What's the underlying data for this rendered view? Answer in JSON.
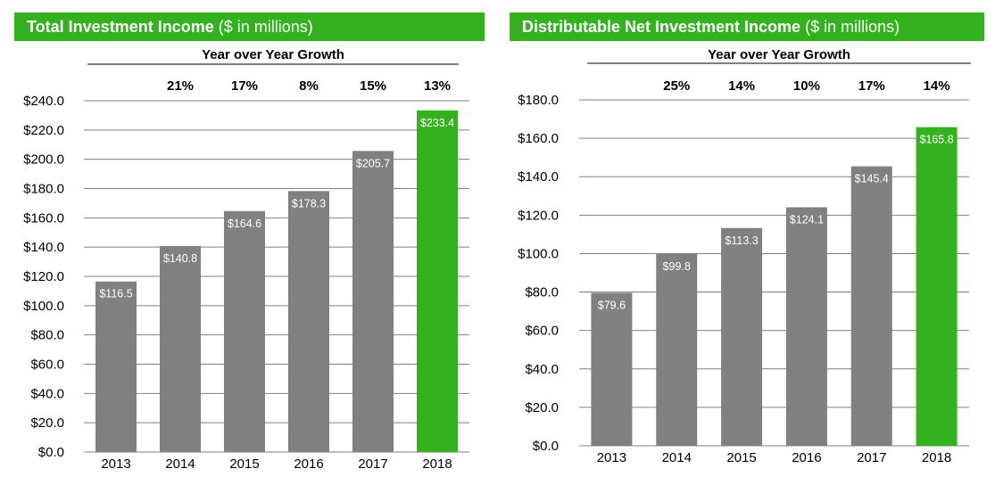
{
  "charts": [
    {
      "title": {
        "bold": "Total Investment Income",
        "normal": "($ in millions)"
      },
      "growth_header": "Year over Year Growth",
      "colors": {
        "bar": "#808080",
        "highlight": "#33b11e",
        "header": "#33b11e"
      },
      "chart_data": {
        "type": "bar",
        "categories": [
          "2013",
          "2014",
          "2015",
          "2016",
          "2017",
          "2018"
        ],
        "values": [
          116.5,
          140.8,
          164.6,
          178.3,
          205.7,
          233.4
        ],
        "value_labels": [
          "$116.5",
          "$140.8",
          "$164.6",
          "$178.3",
          "$205.7",
          "$233.4"
        ],
        "growth_labels": [
          "",
          "21%",
          "17%",
          "8%",
          "15%",
          "13%"
        ],
        "ylim": [
          0,
          240
        ],
        "yticks": [
          "$0.0",
          "$20.0",
          "$40.0",
          "$60.0",
          "$80.0",
          "$100.0",
          "$120.0",
          "$140.0",
          "$160.0",
          "$180.0",
          "$200.0",
          "$220.0",
          "$240.0"
        ],
        "highlight_index": 5,
        "grid": true
      }
    },
    {
      "title": {
        "bold": "Distributable Net Investment Income",
        "normal": "($ in millions)"
      },
      "growth_header": "Year over Year Growth",
      "colors": {
        "bar": "#808080",
        "highlight": "#33b11e",
        "header": "#33b11e"
      },
      "chart_data": {
        "type": "bar",
        "categories": [
          "2013",
          "2014",
          "2015",
          "2016",
          "2017",
          "2018"
        ],
        "values": [
          79.6,
          99.8,
          113.3,
          124.1,
          145.4,
          165.8
        ],
        "value_labels": [
          "$79.6",
          "$99.8",
          "$113.3",
          "$124.1",
          "$145.4",
          "$165.8"
        ],
        "growth_labels": [
          "",
          "25%",
          "14%",
          "10%",
          "17%",
          "14%"
        ],
        "ylim": [
          0,
          180
        ],
        "yticks": [
          "$0.0",
          "$20.0",
          "$40.0",
          "$60.0",
          "$80.0",
          "$100.0",
          "$120.0",
          "$140.0",
          "$160.0",
          "$180.0"
        ],
        "highlight_index": 5,
        "grid": true
      }
    }
  ]
}
